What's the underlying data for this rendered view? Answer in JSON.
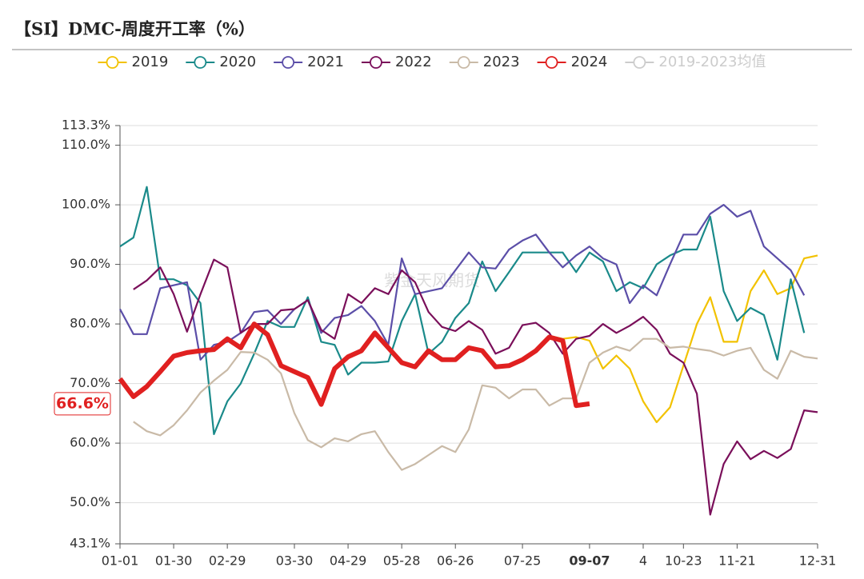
{
  "chart_data": {
    "type": "line",
    "title": "【SI】DMC-周度开工率（%）",
    "watermark": "紫金天风期货",
    "categories": [
      "01-01",
      null,
      null,
      null,
      "01-30",
      null,
      null,
      null,
      "02-29",
      null,
      null,
      null,
      null,
      "03-30",
      null,
      null,
      null,
      "04-29",
      null,
      null,
      null,
      "05-28",
      null,
      null,
      null,
      "06-26",
      null,
      null,
      null,
      null,
      "07-25",
      null,
      null,
      null,
      null,
      "09-07",
      null,
      null,
      null,
      "4",
      null,
      null,
      "10-23",
      null,
      null,
      null,
      "11-21",
      null,
      null,
      null,
      null,
      null,
      "12-31"
    ],
    "ylim": [
      43.1,
      113.3
    ],
    "yticks": [
      {
        "value": 43.1,
        "label": "43.1%"
      },
      {
        "value": 50,
        "label": "50.0%"
      },
      {
        "value": 60,
        "label": "60.0%"
      },
      {
        "value": 70,
        "label": "70.0%"
      },
      {
        "value": 80,
        "label": "80.0%"
      },
      {
        "value": 90,
        "label": "90.0%"
      },
      {
        "value": 100,
        "label": "100.0%"
      },
      {
        "value": 110,
        "label": "110.0%"
      },
      {
        "value": 113.3,
        "label": "113.3%"
      }
    ],
    "grid": true,
    "legend": "top",
    "pointer": {
      "x": "09-07",
      "y": {
        "value": 66.6,
        "label": "66.6%"
      }
    },
    "series": [
      {
        "name": "2019",
        "color": "#f2c200",
        "values": [
          null,
          null,
          null,
          null,
          null,
          null,
          null,
          null,
          null,
          null,
          null,
          null,
          null,
          null,
          null,
          null,
          null,
          null,
          null,
          null,
          null,
          null,
          null,
          null,
          null,
          null,
          null,
          null,
          null,
          null,
          null,
          null,
          78,
          77.5,
          77.8,
          77.2,
          72.5,
          74.7,
          72.5,
          67,
          63.5,
          66,
          73,
          80,
          84.5,
          77,
          77,
          85.5,
          89,
          85,
          86,
          91,
          91.5
        ]
      },
      {
        "name": "2020",
        "color": "#1a8a8a",
        "values": [
          93,
          94.5,
          103,
          87.5,
          87.5,
          86.5,
          83.5,
          61.5,
          67,
          70,
          75,
          80.5,
          79.5,
          79.5,
          84.5,
          77,
          76.5,
          71.5,
          73.5,
          73.5,
          73.7,
          80.5,
          85,
          75,
          77,
          81,
          83.5,
          90.5,
          85.5,
          88.7,
          92,
          92,
          92,
          92,
          88.7,
          92,
          90.5,
          85.5,
          87,
          86,
          90,
          91.5,
          92.5,
          92.5,
          98,
          85.5,
          80.5,
          82.7,
          81.5,
          74,
          87.5,
          78.5,
          null
        ]
      },
      {
        "name": "2021",
        "color": "#5b4ea8",
        "values": [
          82.5,
          78.3,
          78.3,
          86,
          86.5,
          87,
          74,
          76.5,
          77,
          78.5,
          82,
          82.3,
          80,
          82.5,
          84,
          78.5,
          81,
          81.5,
          83,
          80.5,
          76.5,
          91,
          85,
          85.5,
          86,
          89,
          92,
          89.5,
          89.3,
          92.5,
          94,
          95,
          92,
          89.5,
          91.5,
          93,
          91,
          90,
          83.5,
          86.5,
          84.8,
          90,
          95,
          95,
          98.5,
          100,
          98,
          99,
          93,
          91,
          89,
          84.8,
          null
        ]
      },
      {
        "name": "2022",
        "color": "#7a0f5a",
        "values": [
          null,
          85.8,
          87.3,
          89.5,
          85,
          78.7,
          85,
          90.8,
          89.5,
          78.5,
          80,
          80,
          82.3,
          82.5,
          84,
          79,
          77.5,
          85,
          83.5,
          86,
          85,
          89,
          87,
          82,
          79.5,
          78.8,
          80.5,
          79,
          75,
          76,
          79.8,
          80.2,
          78.5,
          75,
          77.5,
          78,
          80,
          78.5,
          79.7,
          81.2,
          79,
          75,
          73.5,
          68.3,
          48,
          56.5,
          60.3,
          57.3,
          58.7,
          57.5,
          59,
          65.5,
          65.2
        ]
      },
      {
        "name": "2023",
        "color": "#c9baa7",
        "values": [
          null,
          63.6,
          62,
          61.3,
          63,
          65.5,
          68.5,
          70.5,
          72.3,
          75.3,
          75.2,
          74,
          71.7,
          65,
          60.5,
          59.3,
          60.8,
          60.3,
          61.5,
          62,
          58.5,
          55.5,
          56.5,
          58,
          59.5,
          58.5,
          62.3,
          69.7,
          69.3,
          67.5,
          69,
          69,
          66.3,
          67.5,
          67.5,
          73.5,
          75.2,
          76.2,
          75.5,
          77.5,
          77.5,
          76,
          76.2,
          75.8,
          75.5,
          74.7,
          75.5,
          76,
          72.3,
          70.8,
          75.5,
          74.5,
          74.2
        ]
      },
      {
        "name": "2024",
        "color": "#e02020",
        "width": 6,
        "values": [
          70.8,
          67.8,
          69.5,
          72,
          74.6,
          75.2,
          75.5,
          75.7,
          77.5,
          76,
          80,
          78.2,
          73,
          72,
          71,
          66.5,
          72.5,
          74.5,
          75.5,
          78.5,
          76,
          73.5,
          72.8,
          75.5,
          74,
          74,
          76,
          75.5,
          72.8,
          73,
          74,
          75.5,
          77.8,
          77.2,
          66.3,
          66.6,
          null,
          null,
          null,
          null,
          null,
          null,
          null,
          null,
          null,
          null,
          null,
          null,
          null,
          null,
          null,
          null,
          null
        ]
      }
    ],
    "hidden_series": [
      {
        "name": "2019-2023均值",
        "color": "#cccccc"
      }
    ]
  }
}
